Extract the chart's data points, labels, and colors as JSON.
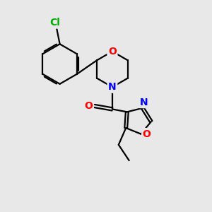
{
  "bg_color": "#e8e8e8",
  "bond_color": "#000000",
  "bond_width": 1.6,
  "atom_colors": {
    "O": "#ff0000",
    "N": "#0000ff",
    "Cl": "#00aa00",
    "C": "#000000"
  },
  "font_size": 9.5,
  "fig_size": [
    3.0,
    3.0
  ],
  "dpi": 100
}
